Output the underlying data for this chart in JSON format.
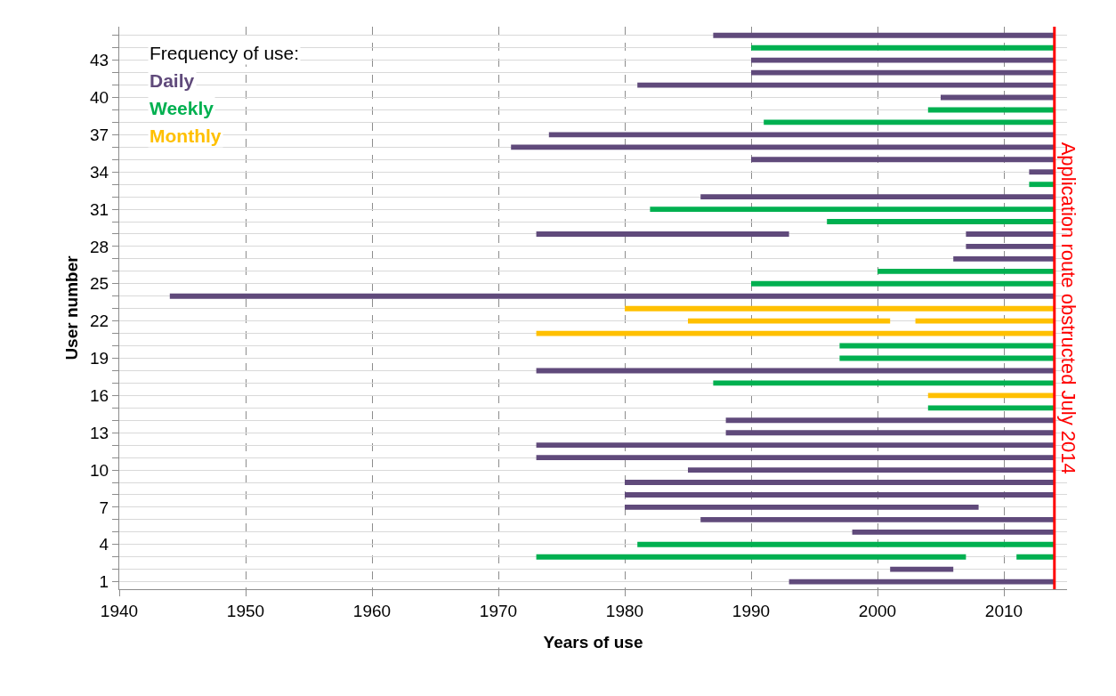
{
  "chart_data": {
    "type": "bar",
    "orientation": "horizontal",
    "xlabel": "Years of use",
    "ylabel": "User number",
    "categories": [
      null,
      null,
      "43",
      null,
      null,
      "40",
      null,
      null,
      "37",
      null,
      null,
      "34",
      null,
      null,
      "31",
      null,
      null,
      "28",
      null,
      null,
      "25",
      null,
      null,
      "22",
      null,
      null,
      "19",
      null,
      null,
      "16",
      null,
      null,
      "13",
      null,
      null,
      "10",
      null,
      null,
      "7",
      null,
      null,
      "4",
      null,
      null,
      "1"
    ],
    "xlim": [
      1940,
      2015
    ],
    "xticks": [
      1940,
      1950,
      1960,
      1970,
      1980,
      1990,
      2000,
      2010
    ],
    "grid": true,
    "legend": "top left",
    "legend_title": "Frequency of use:",
    "series": [
      {
        "name": "Daily",
        "color": "#604a7b",
        "base": [
          1987,
          null,
          1990,
          1990,
          1981,
          2005,
          null,
          null,
          1974,
          1971,
          1990,
          2012,
          null,
          1986,
          null,
          null,
          1973,
          2007,
          2006,
          null,
          null,
          1944,
          null,
          null,
          null,
          null,
          null,
          1973,
          null,
          null,
          null,
          1988,
          1988,
          1973,
          1973,
          1985,
          1980,
          1980,
          1980,
          1986,
          1998,
          null,
          null,
          2001,
          1993
        ],
        "values": [
          27,
          null,
          24,
          24,
          33,
          9,
          null,
          null,
          40,
          43,
          24,
          2,
          null,
          28,
          null,
          null,
          20,
          7,
          8,
          null,
          null,
          70,
          null,
          null,
          null,
          null,
          null,
          41,
          null,
          null,
          null,
          26,
          26,
          41,
          41,
          29,
          34,
          34,
          28,
          28,
          16,
          null,
          null,
          5,
          21
        ]
      },
      {
        "name": "Weekly",
        "color": "#00b050",
        "base": [
          null,
          1990,
          null,
          null,
          null,
          null,
          2004,
          1991,
          null,
          null,
          null,
          null,
          2012,
          null,
          1982,
          1996,
          null,
          null,
          null,
          2000,
          1990,
          null,
          null,
          null,
          null,
          1997,
          1997,
          null,
          1987,
          null,
          2004,
          null,
          null,
          null,
          null,
          null,
          null,
          null,
          null,
          null,
          null,
          1981,
          1973,
          null,
          null
        ],
        "values": [
          null,
          24,
          null,
          null,
          null,
          null,
          10,
          23,
          null,
          null,
          null,
          null,
          2,
          null,
          32,
          18,
          null,
          null,
          null,
          14,
          24,
          null,
          null,
          null,
          null,
          17,
          17,
          null,
          27,
          null,
          10,
          null,
          null,
          null,
          null,
          null,
          null,
          null,
          null,
          null,
          null,
          33,
          34,
          null,
          null
        ]
      },
      {
        "name": "Monthly",
        "color": "#ffc000",
        "base": [
          null,
          null,
          null,
          null,
          null,
          null,
          null,
          null,
          null,
          null,
          null,
          null,
          null,
          null,
          null,
          null,
          null,
          null,
          null,
          null,
          null,
          null,
          1980,
          1985,
          1973,
          null,
          null,
          null,
          null,
          2004,
          null,
          null,
          null,
          null,
          null,
          null,
          null,
          null,
          null,
          null,
          null,
          null,
          null,
          null,
          null
        ],
        "values": [
          null,
          null,
          null,
          null,
          null,
          null,
          null,
          null,
          null,
          null,
          null,
          null,
          null,
          null,
          null,
          null,
          null,
          null,
          null,
          null,
          null,
          null,
          34,
          16,
          41,
          null,
          null,
          null,
          null,
          10,
          null,
          null,
          null,
          null,
          null,
          null,
          null,
          null,
          null,
          null,
          null,
          null,
          null,
          null,
          null
        ]
      },
      {
        "colors": [
          null,
          null,
          null,
          null,
          null,
          null,
          null,
          null,
          null,
          null,
          null,
          null,
          null,
          null,
          null,
          null,
          "#604a7b",
          null,
          null,
          null,
          null,
          null,
          null,
          "#ffc000",
          null,
          null,
          null,
          null,
          null,
          null,
          null,
          null,
          null,
          null,
          null,
          null,
          null,
          null,
          null,
          null,
          null,
          null,
          "#00b050",
          null,
          null
        ],
        "base": [
          null,
          null,
          null,
          null,
          null,
          null,
          null,
          null,
          null,
          null,
          null,
          null,
          null,
          null,
          null,
          null,
          2007,
          null,
          null,
          null,
          null,
          null,
          null,
          2003,
          null,
          null,
          null,
          null,
          null,
          null,
          null,
          null,
          null,
          null,
          null,
          null,
          null,
          null,
          null,
          null,
          null,
          null,
          2011,
          null,
          null
        ],
        "values": [
          null,
          null,
          null,
          null,
          null,
          null,
          null,
          null,
          null,
          null,
          null,
          null,
          null,
          null,
          null,
          null,
          7,
          null,
          null,
          null,
          null,
          null,
          null,
          11,
          null,
          null,
          null,
          null,
          null,
          null,
          null,
          null,
          null,
          null,
          null,
          null,
          null,
          null,
          null,
          null,
          null,
          null,
          3,
          null,
          null
        ]
      }
    ],
    "ref_lines": [
      {
        "axis": "x",
        "value": 2014,
        "label": "Application route obstructed July 2014",
        "color": "#ff0000"
      }
    ]
  }
}
